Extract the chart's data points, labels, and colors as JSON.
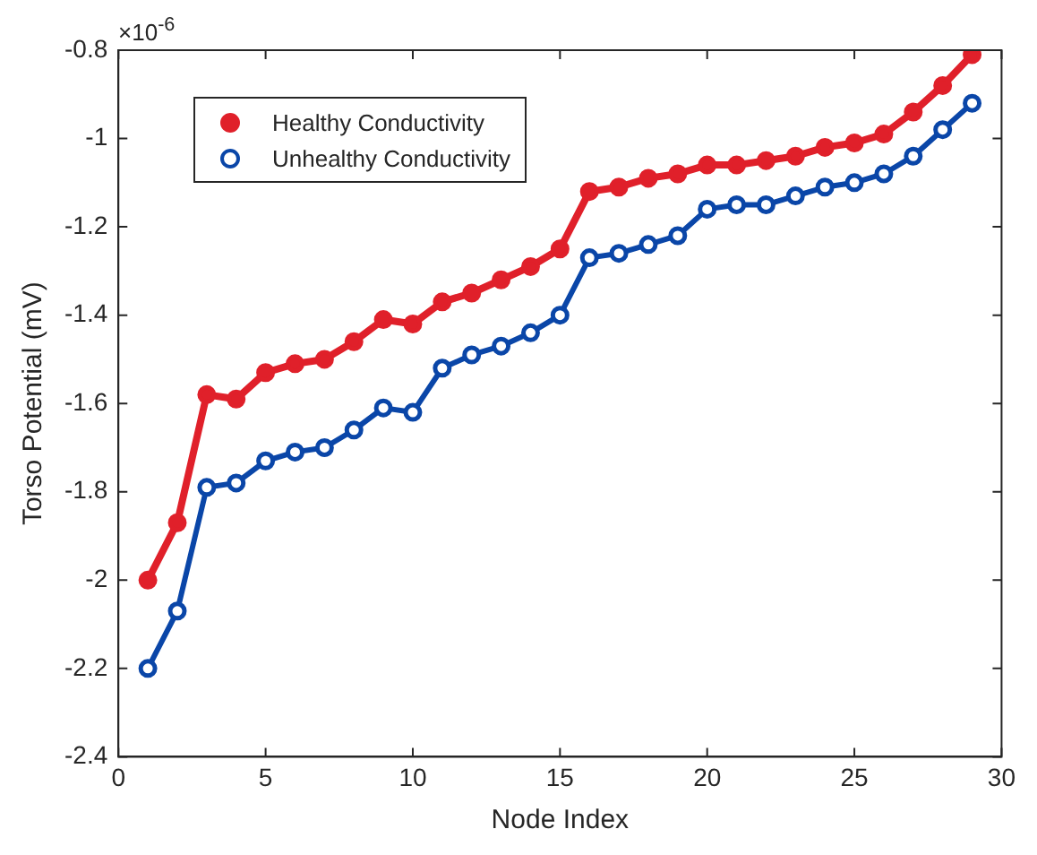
{
  "chart_data": {
    "type": "line",
    "xlabel": "Node Index",
    "ylabel": "Torso Potential (mV)",
    "annotations": [
      "×10$^{-6}$"
    ],
    "x": [
      1,
      2,
      3,
      4,
      5,
      6,
      7,
      8,
      9,
      10,
      11,
      12,
      13,
      14,
      15,
      16,
      17,
      18,
      19,
      20,
      21,
      22,
      23,
      24,
      25,
      26,
      27,
      28,
      29
    ],
    "series": [
      {
        "name": "Healthy Conductivity",
        "color": "#e0202a",
        "values": [
          -2.0,
          -1.87,
          -1.58,
          -1.59,
          -1.53,
          -1.51,
          -1.5,
          -1.46,
          -1.41,
          -1.42,
          -1.37,
          -1.35,
          -1.32,
          -1.29,
          -1.25,
          -1.12,
          -1.11,
          -1.09,
          -1.08,
          -1.06,
          -1.06,
          -1.05,
          -1.04,
          -1.02,
          -1.01,
          -0.99,
          -0.94,
          -0.88,
          -0.81
        ]
      },
      {
        "name": "Unhealthy Conductivity",
        "color": "#0a46a8",
        "values": [
          -2.2,
          -2.07,
          -1.79,
          -1.78,
          -1.73,
          -1.71,
          -1.7,
          -1.66,
          -1.61,
          -1.62,
          -1.52,
          -1.49,
          -1.47,
          -1.44,
          -1.4,
          -1.27,
          -1.26,
          -1.24,
          -1.22,
          -1.16,
          -1.15,
          -1.15,
          -1.13,
          -1.11,
          -1.1,
          -1.08,
          -1.04,
          -0.98,
          -0.92
        ]
      }
    ],
    "xlim": [
      0,
      30
    ],
    "xticks": [
      0,
      5,
      10,
      15,
      20,
      25,
      30
    ],
    "ylim": [
      -2.4,
      -0.8
    ],
    "yticks": [
      -2.4,
      -2.2,
      -2,
      -1.8,
      -1.6,
      -1.4,
      -1.2,
      -1,
      -0.8
    ],
    "grid": false,
    "legend": "top left",
    "marker": "circle",
    "line_style": "solid"
  }
}
